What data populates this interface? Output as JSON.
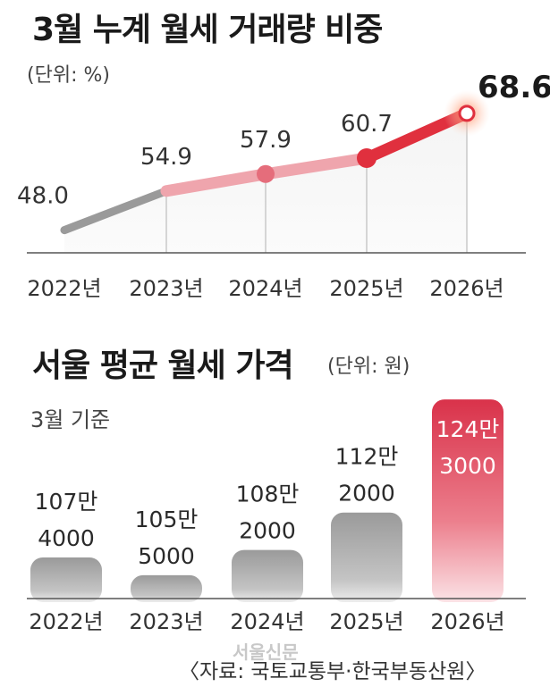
{
  "colors": {
    "gray": "#9a9a9a",
    "pink": "#efa5ad",
    "red": "#e0303e",
    "text": "#222222"
  },
  "chart_data": [
    {
      "type": "line",
      "title": "3월 누계 월세 거래량 비중",
      "unit": "(단위: %)",
      "categories": [
        "2022년",
        "2023년",
        "2024년",
        "2025년",
        "2026년"
      ],
      "values": [
        48.0,
        54.9,
        57.9,
        60.7,
        68.6
      ],
      "value_labels": [
        "48.0",
        "54.9",
        "57.9",
        "60.7",
        "68.6"
      ],
      "ylim": [
        44,
        70
      ]
    },
    {
      "type": "bar",
      "title": "서울 평균 월세 가격",
      "unit": "(단위: 원)",
      "subtitle": "3월 기준",
      "categories": [
        "2022년",
        "2023년",
        "2024년",
        "2025년",
        "2026년"
      ],
      "values": [
        1074000,
        1055000,
        1082000,
        1122000,
        1243000
      ],
      "label_top": [
        "107만",
        "105만",
        "108만",
        "112만",
        "124만"
      ],
      "label_bottom": [
        "4000",
        "5000",
        "2000",
        "2000",
        "3000"
      ],
      "ylim": [
        1030000,
        1245000
      ]
    }
  ],
  "footer": {
    "watermark": "서울신문",
    "source": "〈자료: 국토교통부·한국부동산원〉"
  }
}
